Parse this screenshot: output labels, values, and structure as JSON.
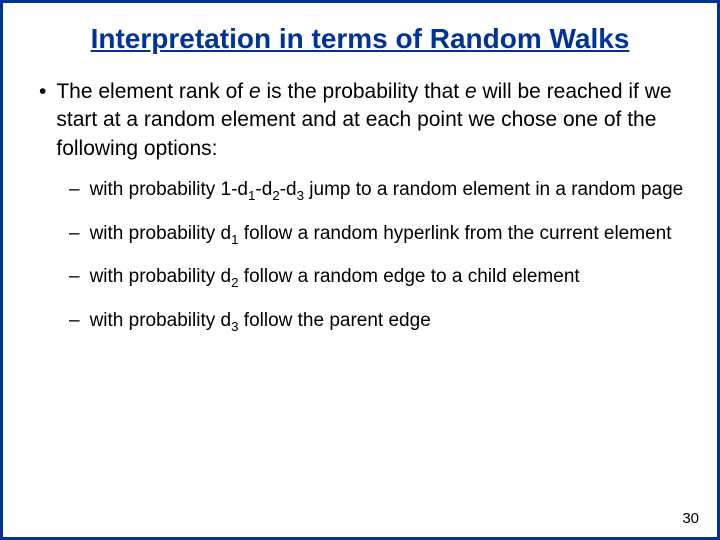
{
  "slide": {
    "border_color": "#003399",
    "background_color": "#ffffff",
    "title_color": "#003399",
    "text_color": "#000000",
    "title_fontsize": 28,
    "body_fontsize": 21,
    "sub_fontsize": 19,
    "title": "Interpretation in terms of Random Walks",
    "main_bullet_pre": "The element rank of ",
    "main_bullet_e1": "e",
    "main_bullet_mid": " is the probability that ",
    "main_bullet_e2": "e",
    "main_bullet_post": " will be reached if we start at a random element and at each point we chose one of the following options:",
    "sub1_pre": "with probability 1-d",
    "sub1_s1": "1",
    "sub1_m1": "-d",
    "sub1_s2": "2",
    "sub1_m2": "-d",
    "sub1_s3": "3",
    "sub1_post": " jump to a random element in a random page",
    "sub2_pre": "with probability d",
    "sub2_s1": "1",
    "sub2_post": " follow a random hyperlink from the current element",
    "sub3_pre": "with probability d",
    "sub3_s1": "2",
    "sub3_post": " follow a random edge to a child element",
    "sub4_pre": "with probability d",
    "sub4_s1": "3",
    "sub4_post": " follow the parent edge",
    "page_number": "30",
    "main_marker": "•",
    "sub_marker": "–"
  }
}
